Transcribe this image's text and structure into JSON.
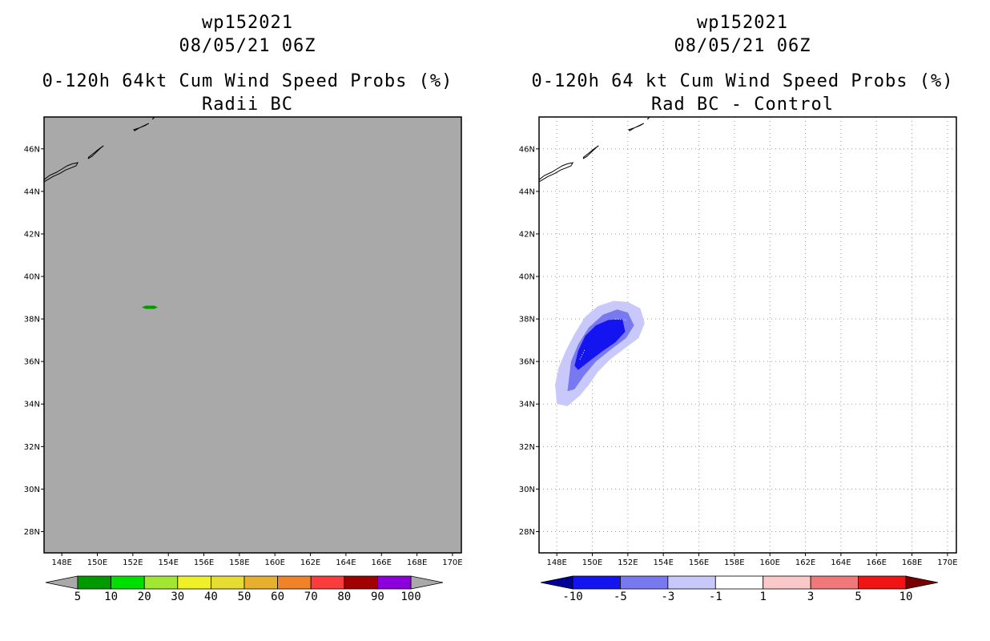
{
  "left_panel": {
    "title_line1": "wp152021",
    "title_line2": "08/05/21 06Z",
    "title_line3": "0-120h 64kt Cum Wind Speed Probs (%)",
    "title_line4": "Radii BC"
  },
  "right_panel": {
    "title_line1": "wp152021",
    "title_line2": "08/05/21 06Z",
    "title_line3": "0-120h 64 kt Cum Wind Speed Probs (%)",
    "title_line4": "Rad BC - Control"
  },
  "chart_data": [
    {
      "type": "contour-map",
      "title": "0-120h 64kt Cum Wind Speed Probs (%) - Radii BC",
      "lon_range": [
        147,
        170.5
      ],
      "lat_range": [
        27,
        47.5
      ],
      "x_ticks": [
        "148E",
        "150E",
        "152E",
        "154E",
        "156E",
        "158E",
        "160E",
        "162E",
        "164E",
        "166E",
        "168E",
        "170E"
      ],
      "x_tick_values": [
        148,
        150,
        152,
        154,
        156,
        158,
        160,
        162,
        164,
        166,
        168,
        170
      ],
      "y_ticks": [
        "28N",
        "30N",
        "32N",
        "34N",
        "36N",
        "38N",
        "40N",
        "42N",
        "44N",
        "46N"
      ],
      "y_tick_values": [
        28,
        30,
        32,
        34,
        36,
        38,
        40,
        42,
        44,
        46
      ],
      "background_color": "#a9a9a9",
      "grid": false,
      "features": [
        {
          "name": "prob-5-10",
          "lon_range": [
            152.5,
            153.4
          ],
          "lat": 38.55,
          "level": "5-10",
          "color": "#009900"
        }
      ],
      "colorbar": {
        "labels": [
          "5",
          "10",
          "20",
          "30",
          "40",
          "50",
          "60",
          "70",
          "80",
          "90",
          "100"
        ],
        "colors": [
          "#009900",
          "#00e000",
          "#a0e632",
          "#f0f028",
          "#e6dc32",
          "#e6af2d",
          "#f08228",
          "#fa3c3c",
          "#a00000",
          "#8c00dc"
        ],
        "extend_color": "#a9a9a9"
      }
    },
    {
      "type": "contour-map",
      "title": "0-120h 64 kt Cum Wind Speed Probs (%) - Rad BC - Control",
      "lon_range": [
        147,
        170.5
      ],
      "lat_range": [
        27,
        47.5
      ],
      "x_ticks": [
        "148E",
        "150E",
        "152E",
        "154E",
        "156E",
        "158E",
        "160E",
        "162E",
        "164E",
        "166E",
        "168E",
        "170E"
      ],
      "x_tick_values": [
        148,
        150,
        152,
        154,
        156,
        158,
        160,
        162,
        164,
        166,
        168,
        170
      ],
      "y_ticks": [
        "28N",
        "30N",
        "32N",
        "34N",
        "36N",
        "38N",
        "40N",
        "42N",
        "44N",
        "46N"
      ],
      "y_tick_values": [
        28,
        30,
        32,
        34,
        36,
        38,
        40,
        42,
        44,
        46
      ],
      "background_color": "#ffffff",
      "grid": true,
      "features": [
        {
          "name": "diff-minus1-minus3",
          "level": "-3 to -1",
          "color": "#c8c8fa"
        },
        {
          "name": "diff-minus3-minus5",
          "level": "-5 to -3",
          "color": "#7878f0"
        },
        {
          "name": "diff-minus5-minus10",
          "level": "-10 to -5",
          "color": "#1414f0"
        }
      ],
      "colorbar": {
        "labels": [
          "-10",
          "-5",
          "-3",
          "-1",
          "1",
          "3",
          "5",
          "10"
        ],
        "colors": [
          "#1414f0",
          "#7878f0",
          "#c8c8fa",
          "#ffffff",
          "#fac8c8",
          "#f07878",
          "#f01414"
        ],
        "low_extend_color": "#000096",
        "high_extend_color": "#780000"
      }
    }
  ]
}
